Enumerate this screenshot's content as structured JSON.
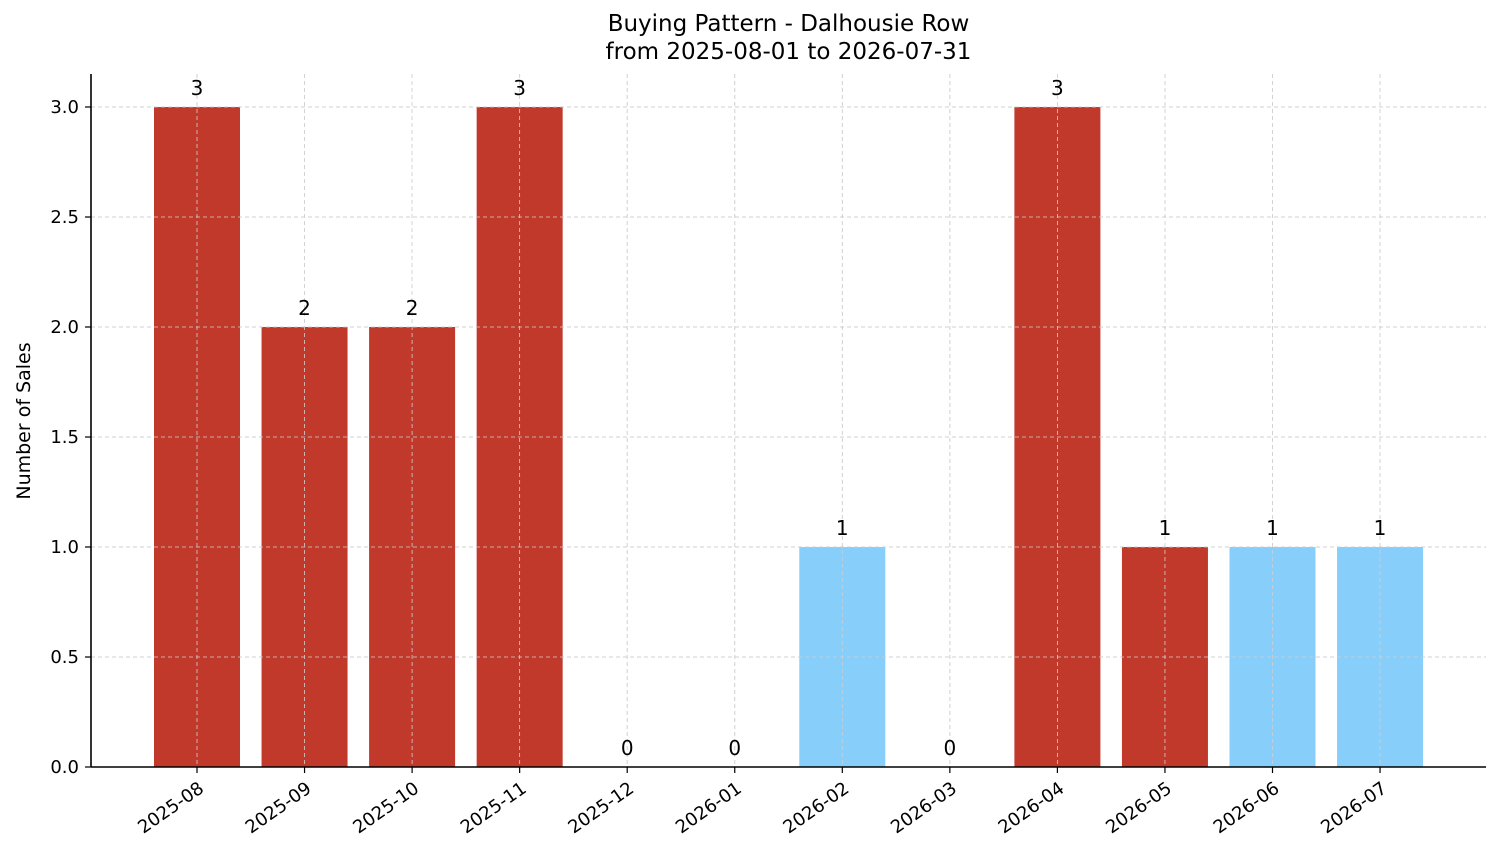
{
  "chart_data": {
    "type": "bar",
    "title": "Buying Pattern - Dalhousie Row",
    "subtitle": "from 2025-08-01 to 2026-07-31",
    "ylabel": "Number of Sales",
    "xlabel": "",
    "categories": [
      "2025-08",
      "2025-09",
      "2025-10",
      "2025-11",
      "2025-12",
      "2026-01",
      "2026-02",
      "2026-03",
      "2026-04",
      "2026-05",
      "2026-06",
      "2026-07"
    ],
    "values": [
      3,
      2,
      2,
      3,
      0,
      0,
      1,
      0,
      3,
      1,
      1,
      1
    ],
    "bar_colors": [
      "#c0392b",
      "#c0392b",
      "#c0392b",
      "#c0392b",
      "#c0392b",
      "#c0392b",
      "#87cefa",
      "#c0392b",
      "#c0392b",
      "#c0392b",
      "#87cefa",
      "#87cefa"
    ],
    "ylim": [
      0,
      3.15
    ],
    "yticks": [
      "0.0",
      "0.5",
      "1.0",
      "1.5",
      "2.0",
      "2.5",
      "3.0"
    ],
    "grid": true,
    "legend": "none"
  }
}
